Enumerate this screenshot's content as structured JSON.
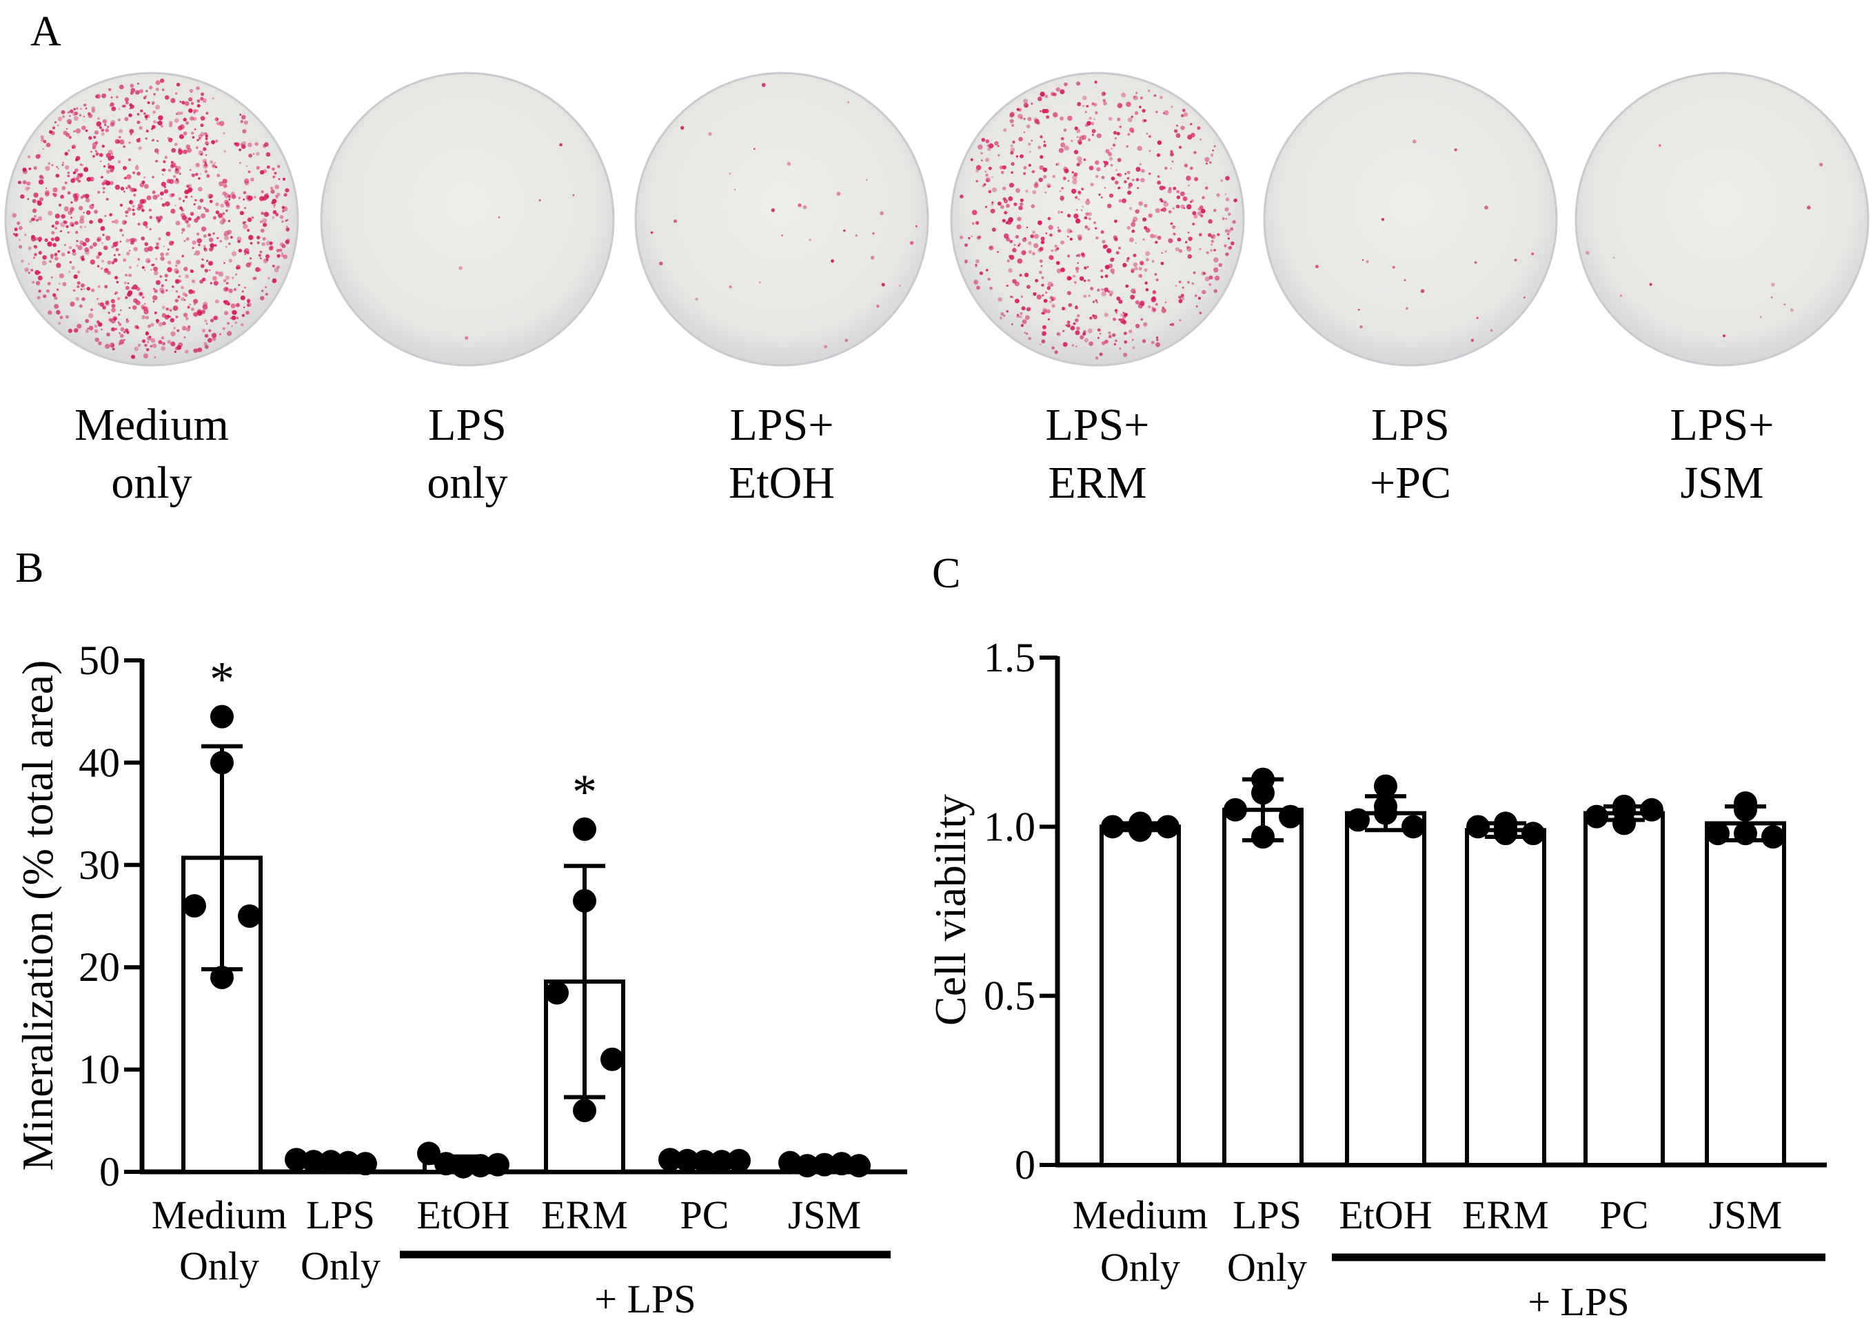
{
  "panels": {
    "a": {
      "letter": "A",
      "wells": [
        {
          "line1": "Medium",
          "line2": "only",
          "stain": 0.85
        },
        {
          "line1": "LPS",
          "line2": "only",
          "stain": 0.0
        },
        {
          "line1": "LPS+",
          "line2": "EtOH",
          "stain": 0.02
        },
        {
          "line1": "LPS+",
          "line2": "ERM",
          "stain": 0.55
        },
        {
          "line1": "LPS",
          "line2": "+PC",
          "stain": 0.01
        },
        {
          "line1": "LPS+",
          "line2": "JSM",
          "stain": 0.005
        }
      ]
    },
    "b": {
      "letter": "B"
    },
    "c": {
      "letter": "C"
    }
  },
  "colors": {
    "stain": "#d8195a",
    "plate": "#ececea",
    "plate_edge": "#c9c9cf"
  },
  "chart_data": [
    {
      "type": "bar",
      "panel": "B",
      "ylabel": "Mineralization (% total area)",
      "ylim": [
        0,
        50
      ],
      "yticks": [
        0,
        10,
        20,
        30,
        40,
        50
      ],
      "ytick_labels": [
        "0",
        "10",
        "20",
        "30",
        "40",
        "50"
      ],
      "categories": [
        {
          "line1": "Medium",
          "line2": "Only"
        },
        {
          "line1": "LPS",
          "line2": "Only"
        },
        {
          "line1": "EtOH",
          "line2": ""
        },
        {
          "line1": "ERM",
          "line2": ""
        },
        {
          "line1": "PC",
          "line2": ""
        },
        {
          "line1": "JSM",
          "line2": ""
        }
      ],
      "group_label": "+ LPS",
      "group_span": [
        2,
        5
      ],
      "means": [
        30.7,
        1.0,
        0.9,
        18.6,
        1.1,
        0.7
      ],
      "sd": [
        10.9,
        0.2,
        0.6,
        11.3,
        0.2,
        0.3
      ],
      "points": [
        [
          44.5,
          40.0,
          26.0,
          25.0,
          19.0
        ],
        [
          1.2,
          1.0,
          1.0,
          0.9,
          0.8
        ],
        [
          1.8,
          0.8,
          0.5,
          0.6,
          0.7
        ],
        [
          33.5,
          26.5,
          17.5,
          11.0,
          6.0
        ],
        [
          1.2,
          1.1,
          1.0,
          1.0,
          1.1
        ],
        [
          0.9,
          0.6,
          0.7,
          0.8,
          0.6
        ]
      ],
      "significance": [
        "*",
        "",
        "",
        "*",
        "",
        ""
      ]
    },
    {
      "type": "bar",
      "panel": "C",
      "ylabel": "Cell viability",
      "ylim": [
        0,
        1.5
      ],
      "yticks": [
        0,
        0.5,
        1.0,
        1.5
      ],
      "ytick_labels": [
        "0",
        "0.5",
        "1.0",
        "1.5"
      ],
      "categories": [
        {
          "line1": "Medium",
          "line2": "Only"
        },
        {
          "line1": "LPS",
          "line2": "Only"
        },
        {
          "line1": "EtOH",
          "line2": ""
        },
        {
          "line1": "ERM",
          "line2": ""
        },
        {
          "line1": "PC",
          "line2": ""
        },
        {
          "line1": "JSM",
          "line2": ""
        }
      ],
      "group_label": "+ LPS",
      "group_span": [
        2,
        5
      ],
      "means": [
        1.0,
        1.05,
        1.04,
        0.99,
        1.04,
        1.01
      ],
      "sd": [
        0.01,
        0.09,
        0.05,
        0.02,
        0.02,
        0.05
      ],
      "points": [
        [
          1.01,
          0.99,
          1.0,
          1.0,
          0.99
        ],
        [
          1.14,
          1.1,
          1.05,
          1.03,
          0.97
        ],
        [
          1.12,
          1.04,
          1.02,
          1.0,
          1.06
        ],
        [
          1.0,
          0.98,
          1.0,
          0.98,
          1.01
        ],
        [
          1.06,
          1.05,
          1.03,
          1.05,
          1.01
        ],
        [
          1.07,
          1.05,
          0.98,
          0.97,
          0.98
        ]
      ],
      "significance": [
        "",
        "",
        "",
        "",
        "",
        ""
      ]
    }
  ]
}
